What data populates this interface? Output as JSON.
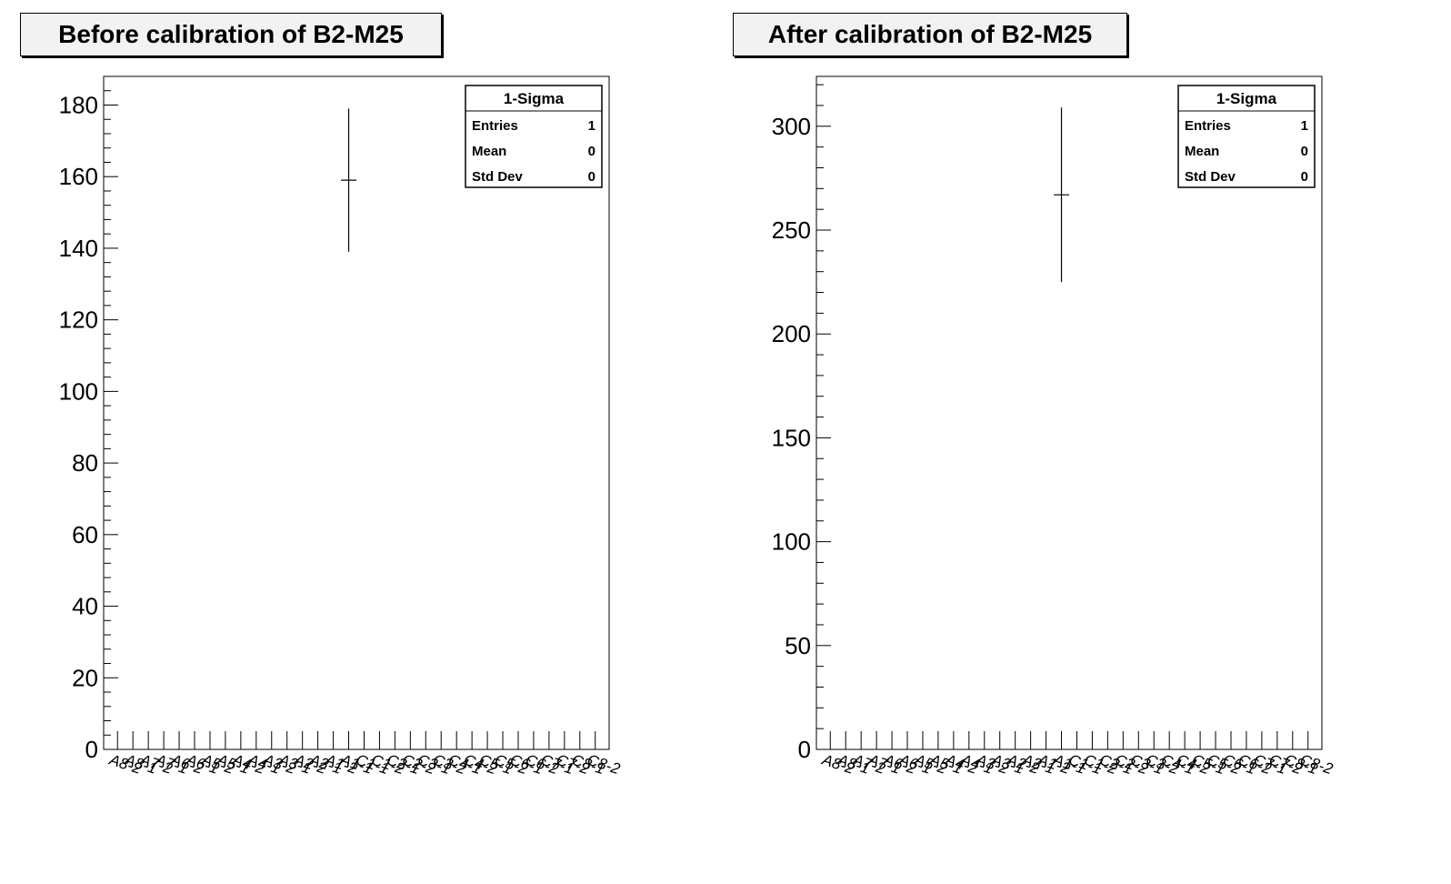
{
  "chart_data": [
    {
      "type": "histogram",
      "title": "Before calibration of B2-M25",
      "ylim": [
        0,
        188
      ],
      "y_ticks": [
        0,
        20,
        40,
        60,
        80,
        100,
        120,
        140,
        160,
        180
      ],
      "categories": [
        "A8-2",
        "A8-1",
        "A7-2",
        "A7-1",
        "A6-2",
        "A6-1",
        "A5-2",
        "A5-1",
        "A4-2",
        "A4-1",
        "A3-2",
        "A3-1",
        "A2-2",
        "A2-1",
        "A1-2",
        "A1-1",
        "C1-1",
        "C1-2",
        "C2-1",
        "C2-2",
        "C3-1",
        "C3-2",
        "C4-1",
        "C4-2",
        "C5-1",
        "C5-2",
        "C6-1",
        "C6-2",
        "C7-1",
        "C7-2",
        "C8-1",
        "C8-2"
      ],
      "points": [
        {
          "category_index": 15,
          "value": 159,
          "error": 20
        }
      ],
      "stats": {
        "name": "1-Sigma",
        "entries": "1",
        "mean": "0",
        "std_dev": "0"
      },
      "grid": false,
      "legend_position": "top-right"
    },
    {
      "type": "histogram",
      "title": "After calibration of B2-M25",
      "ylim": [
        0,
        324
      ],
      "y_ticks": [
        0,
        50,
        100,
        150,
        200,
        250,
        300
      ],
      "categories": [
        "A8-2",
        "A8-1",
        "A7-2",
        "A7-1",
        "A6-2",
        "A6-1",
        "A5-2",
        "A5-1",
        "A4-2",
        "A4-1",
        "A3-2",
        "A3-1",
        "A2-2",
        "A2-1",
        "A1-2",
        "A1-1",
        "C1-1",
        "C1-2",
        "C2-1",
        "C2-2",
        "C3-1",
        "C3-2",
        "C4-1",
        "C4-2",
        "C5-1",
        "C5-2",
        "C6-1",
        "C6-2",
        "C7-1",
        "C7-2",
        "C8-1",
        "C8-2"
      ],
      "points": [
        {
          "category_index": 15,
          "value": 267,
          "error": 42
        }
      ],
      "stats": {
        "name": "1-Sigma",
        "entries": "1",
        "mean": "0",
        "std_dev": "0"
      },
      "grid": false,
      "legend_position": "top-right"
    }
  ],
  "stats_labels": {
    "entries": "Entries",
    "mean": "Mean",
    "std_dev": "Std Dev"
  }
}
